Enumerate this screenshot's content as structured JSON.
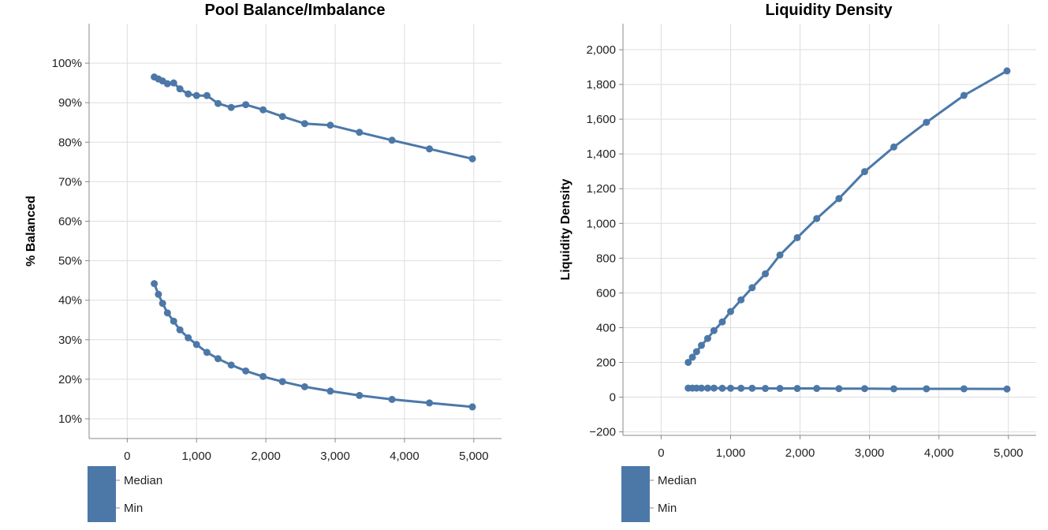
{
  "chart_data": [
    {
      "type": "line",
      "title": "Pool Balance/Imbalance",
      "xlabel": "",
      "ylabel": "% Balanced",
      "xlim": [
        -550,
        5400
      ],
      "ylim": [
        0.05,
        1.1
      ],
      "x_ticks": [
        0,
        1000,
        2000,
        3000,
        4000,
        5000
      ],
      "x_tick_labels": [
        "0",
        "1,000",
        "2,000",
        "3,000",
        "4,000",
        "5,000"
      ],
      "y_ticks": [
        0.1,
        0.2,
        0.3,
        0.4,
        0.5,
        0.6,
        0.7,
        0.8,
        0.9,
        1.0
      ],
      "y_tick_labels": [
        "10%",
        "20%",
        "30%",
        "40%",
        "50%",
        "60%",
        "70%",
        "80%",
        "90%",
        "100%"
      ],
      "grid": true,
      "legend": {
        "position": "bottom-left",
        "entries": [
          "Median",
          "Min"
        ]
      },
      "color": "#4c78a8",
      "series": [
        {
          "name": "Median",
          "x": [
            390,
            450,
            510,
            580,
            670,
            760,
            880,
            1000,
            1150,
            1310,
            1500,
            1710,
            1960,
            2240,
            2560,
            2930,
            3350,
            3820,
            4360,
            4980
          ],
          "y": [
            0.965,
            0.96,
            0.955,
            0.948,
            0.95,
            0.935,
            0.922,
            0.918,
            0.918,
            0.898,
            0.888,
            0.895,
            0.882,
            0.865,
            0.847,
            0.843,
            0.825,
            0.805,
            0.783,
            0.758
          ]
        },
        {
          "name": "Min",
          "x": [
            390,
            450,
            510,
            580,
            670,
            760,
            880,
            1000,
            1150,
            1310,
            1500,
            1710,
            1960,
            2240,
            2560,
            2930,
            3350,
            3820,
            4360,
            4980
          ],
          "y": [
            0.442,
            0.415,
            0.392,
            0.368,
            0.347,
            0.325,
            0.305,
            0.288,
            0.268,
            0.252,
            0.236,
            0.221,
            0.207,
            0.194,
            0.181,
            0.17,
            0.159,
            0.149,
            0.14,
            0.13
          ]
        }
      ]
    },
    {
      "type": "line",
      "title": "Liquidity Density",
      "xlabel": "",
      "ylabel": "Liquidity Density",
      "xlim": [
        -550,
        5400
      ],
      "ylim": [
        -220,
        2150
      ],
      "x_ticks": [
        0,
        1000,
        2000,
        3000,
        4000,
        5000
      ],
      "x_tick_labels": [
        "0",
        "1,000",
        "2,000",
        "3,000",
        "4,000",
        "5,000"
      ],
      "y_ticks": [
        -200,
        0,
        200,
        400,
        600,
        800,
        1000,
        1200,
        1400,
        1600,
        1800,
        2000
      ],
      "y_tick_labels": [
        "−200",
        "0",
        "200",
        "400",
        "600",
        "800",
        "1,000",
        "1,200",
        "1,400",
        "1,600",
        "1,800",
        "2,000"
      ],
      "grid": true,
      "legend": {
        "position": "bottom-left",
        "entries": [
          "Median",
          "Min"
        ]
      },
      "color": "#4c78a8",
      "series": [
        {
          "name": "Median",
          "x": [
            390,
            450,
            510,
            580,
            670,
            760,
            880,
            1000,
            1150,
            1310,
            1500,
            1710,
            1960,
            2240,
            2560,
            2930,
            3350,
            3820,
            4360,
            4980
          ],
          "y": [
            200,
            230,
            262,
            298,
            338,
            383,
            433,
            493,
            560,
            630,
            710,
            818,
            918,
            1028,
            1143,
            1298,
            1440,
            1582,
            1737,
            1878
          ]
        },
        {
          "name": "Min",
          "x": [
            390,
            450,
            510,
            580,
            670,
            760,
            880,
            1000,
            1150,
            1310,
            1500,
            1710,
            1960,
            2240,
            2560,
            2930,
            3350,
            3820,
            4360,
            4980
          ],
          "y": [
            52,
            52,
            52,
            52,
            52,
            52,
            51,
            51,
            51,
            51,
            50,
            50,
            50,
            50,
            49,
            49,
            48,
            48,
            48,
            47
          ]
        }
      ]
    }
  ]
}
